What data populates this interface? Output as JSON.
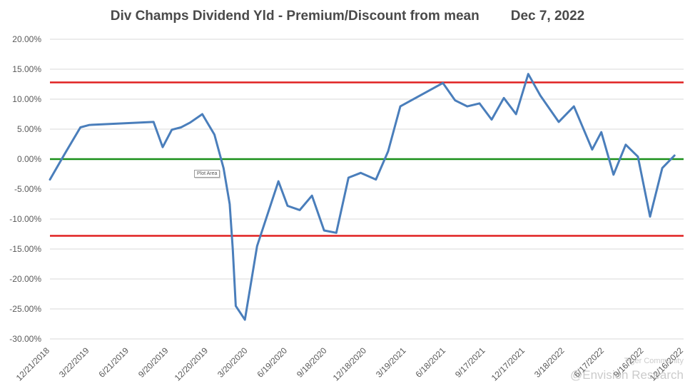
{
  "chart_data": {
    "type": "line",
    "title": "Div Champs Dividend Yld - Premium/Discount from mean",
    "date_label": "Dec 7, 2022",
    "xlabel": "",
    "ylabel": "",
    "ylim": [
      -0.3,
      0.2
    ],
    "y_ticks": [
      0.2,
      0.15,
      0.1,
      0.05,
      0.0,
      -0.05,
      -0.1,
      -0.15,
      -0.2,
      -0.25,
      -0.3
    ],
    "y_tick_labels": [
      "20.00%",
      "15.00%",
      "10.00%",
      "5.00%",
      "0.00%",
      "-5.00%",
      "-10.00%",
      "-15.00%",
      "-20.00%",
      "-25.00%",
      "-30.00%"
    ],
    "x_range": [
      "2018-12-21",
      "2022-12-16"
    ],
    "x_ticks": [
      "2018-12-21",
      "2019-03-22",
      "2019-06-21",
      "2019-09-20",
      "2019-12-20",
      "2020-03-20",
      "2020-06-19",
      "2020-09-18",
      "2020-12-18",
      "2021-03-19",
      "2021-06-18",
      "2021-09-17",
      "2021-12-17",
      "2022-03-18",
      "2022-06-17",
      "2022-09-16",
      "2022-12-16"
    ],
    "x_tick_labels": [
      "12/21/2018",
      "3/22/2019",
      "6/21/2019",
      "9/20/2019",
      "12/20/2019",
      "3/20/2020",
      "6/19/2020",
      "9/18/2020",
      "12/18/2020",
      "3/19/2021",
      "6/18/2021",
      "9/17/2021",
      "12/17/2021",
      "3/18/2022",
      "6/17/2022",
      "9/16/2022",
      "12/16/2022"
    ],
    "grid": true,
    "series": [
      {
        "color": "#4a7ebb",
        "points": [
          [
            "2018-12-21",
            -0.034
          ],
          [
            "2019-01-25",
            0.01
          ],
          [
            "2019-03-01",
            0.053
          ],
          [
            "2019-03-22",
            0.057
          ],
          [
            "2019-08-16",
            0.062
          ],
          [
            "2019-09-06",
            0.02
          ],
          [
            "2019-09-27",
            0.049
          ],
          [
            "2019-10-18",
            0.053
          ],
          [
            "2019-11-08",
            0.061
          ],
          [
            "2019-12-06",
            0.075
          ],
          [
            "2020-01-03",
            0.041
          ],
          [
            "2020-01-24",
            -0.015
          ],
          [
            "2020-02-07",
            -0.075
          ],
          [
            "2020-02-14",
            -0.15
          ],
          [
            "2020-02-21",
            -0.245
          ],
          [
            "2020-03-13",
            -0.268
          ],
          [
            "2020-04-10",
            -0.145
          ],
          [
            "2020-05-29",
            -0.037
          ],
          [
            "2020-06-19",
            -0.078
          ],
          [
            "2020-07-17",
            -0.085
          ],
          [
            "2020-08-14",
            -0.061
          ],
          [
            "2020-09-11",
            -0.119
          ],
          [
            "2020-10-09",
            -0.123
          ],
          [
            "2020-11-06",
            -0.031
          ],
          [
            "2020-12-04",
            -0.023
          ],
          [
            "2021-01-08",
            -0.034
          ],
          [
            "2021-02-05",
            0.013
          ],
          [
            "2021-03-05",
            0.088
          ],
          [
            "2021-06-11",
            0.127
          ],
          [
            "2021-07-09",
            0.098
          ],
          [
            "2021-08-06",
            0.088
          ],
          [
            "2021-09-03",
            0.093
          ],
          [
            "2021-10-01",
            0.066
          ],
          [
            "2021-10-29",
            0.102
          ],
          [
            "2021-11-26",
            0.075
          ],
          [
            "2021-12-24",
            0.142
          ],
          [
            "2022-01-21",
            0.106
          ],
          [
            "2022-03-04",
            0.062
          ],
          [
            "2022-04-08",
            0.088
          ],
          [
            "2022-05-20",
            0.016
          ],
          [
            "2022-06-10",
            0.045
          ],
          [
            "2022-07-08",
            -0.026
          ],
          [
            "2022-08-05",
            0.024
          ],
          [
            "2022-09-02",
            0.004
          ],
          [
            "2022-09-30",
            -0.096
          ],
          [
            "2022-10-28",
            -0.015
          ],
          [
            "2022-11-25",
            0.006
          ]
        ]
      }
    ],
    "reference_lines": [
      {
        "value": 0.128,
        "color": "#e02020"
      },
      {
        "value": 0.0,
        "color": "#1a8f1a"
      },
      {
        "value": -0.128,
        "color": "#e02020"
      }
    ],
    "tooltip_text": "Plot Area",
    "watermark": {
      "line1": "Tiger Community",
      "line2": "@Envision Research"
    }
  }
}
